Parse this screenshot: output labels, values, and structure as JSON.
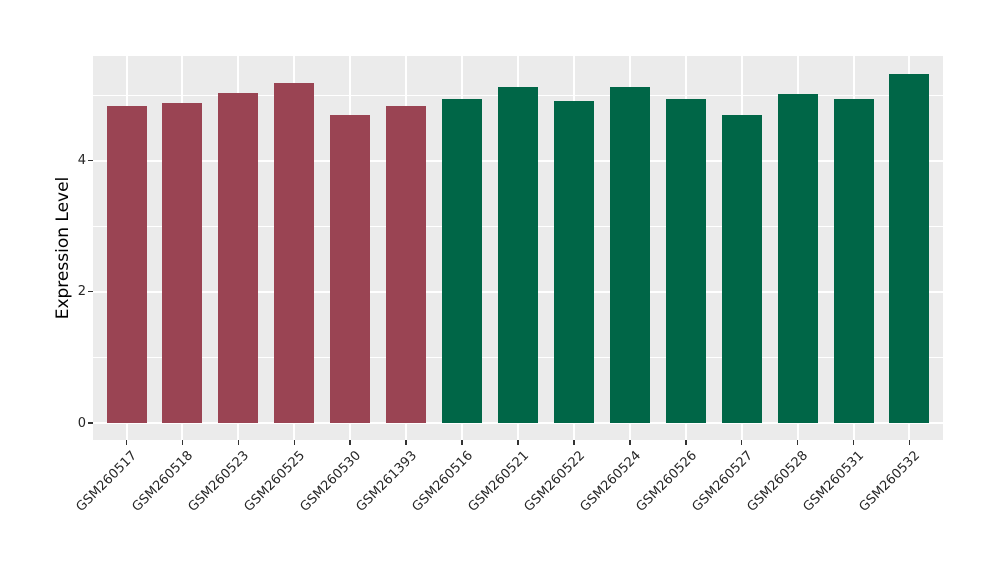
{
  "chart_data": {
    "type": "bar",
    "title": "",
    "xlabel": "",
    "ylabel": "Expression Level",
    "ylim": [
      0,
      5.6
    ],
    "yticks": [
      0,
      2,
      4
    ],
    "yticks_minor": [
      1,
      3,
      5
    ],
    "grid": true,
    "legend_position": "none",
    "categories": [
      "GSM260517",
      "GSM260518",
      "GSM260523",
      "GSM260525",
      "GSM260530",
      "GSM261393",
      "GSM260516",
      "GSM260521",
      "GSM260522",
      "GSM260524",
      "GSM260526",
      "GSM260527",
      "GSM260528",
      "GSM260531",
      "GSM260532"
    ],
    "values": [
      4.84,
      4.89,
      5.04,
      5.19,
      4.7,
      4.83,
      4.95,
      5.12,
      4.92,
      5.12,
      4.95,
      4.7,
      5.02,
      4.95,
      5.33
    ],
    "groups": [
      "group1",
      "group1",
      "group1",
      "group1",
      "group1",
      "group1",
      "group2",
      "group2",
      "group2",
      "group2",
      "group2",
      "group2",
      "group2",
      "group2",
      "group2"
    ],
    "group_colors": {
      "group1": "#9A4453",
      "group2": "#006647"
    },
    "colors": {
      "panel_bg": "#EBEBEB",
      "grid": "#FFFFFF",
      "tick_mark": "#333333",
      "axis_text": "#262626",
      "axis_title": "#000000",
      "figure_bg": "#FFFFFF"
    }
  }
}
